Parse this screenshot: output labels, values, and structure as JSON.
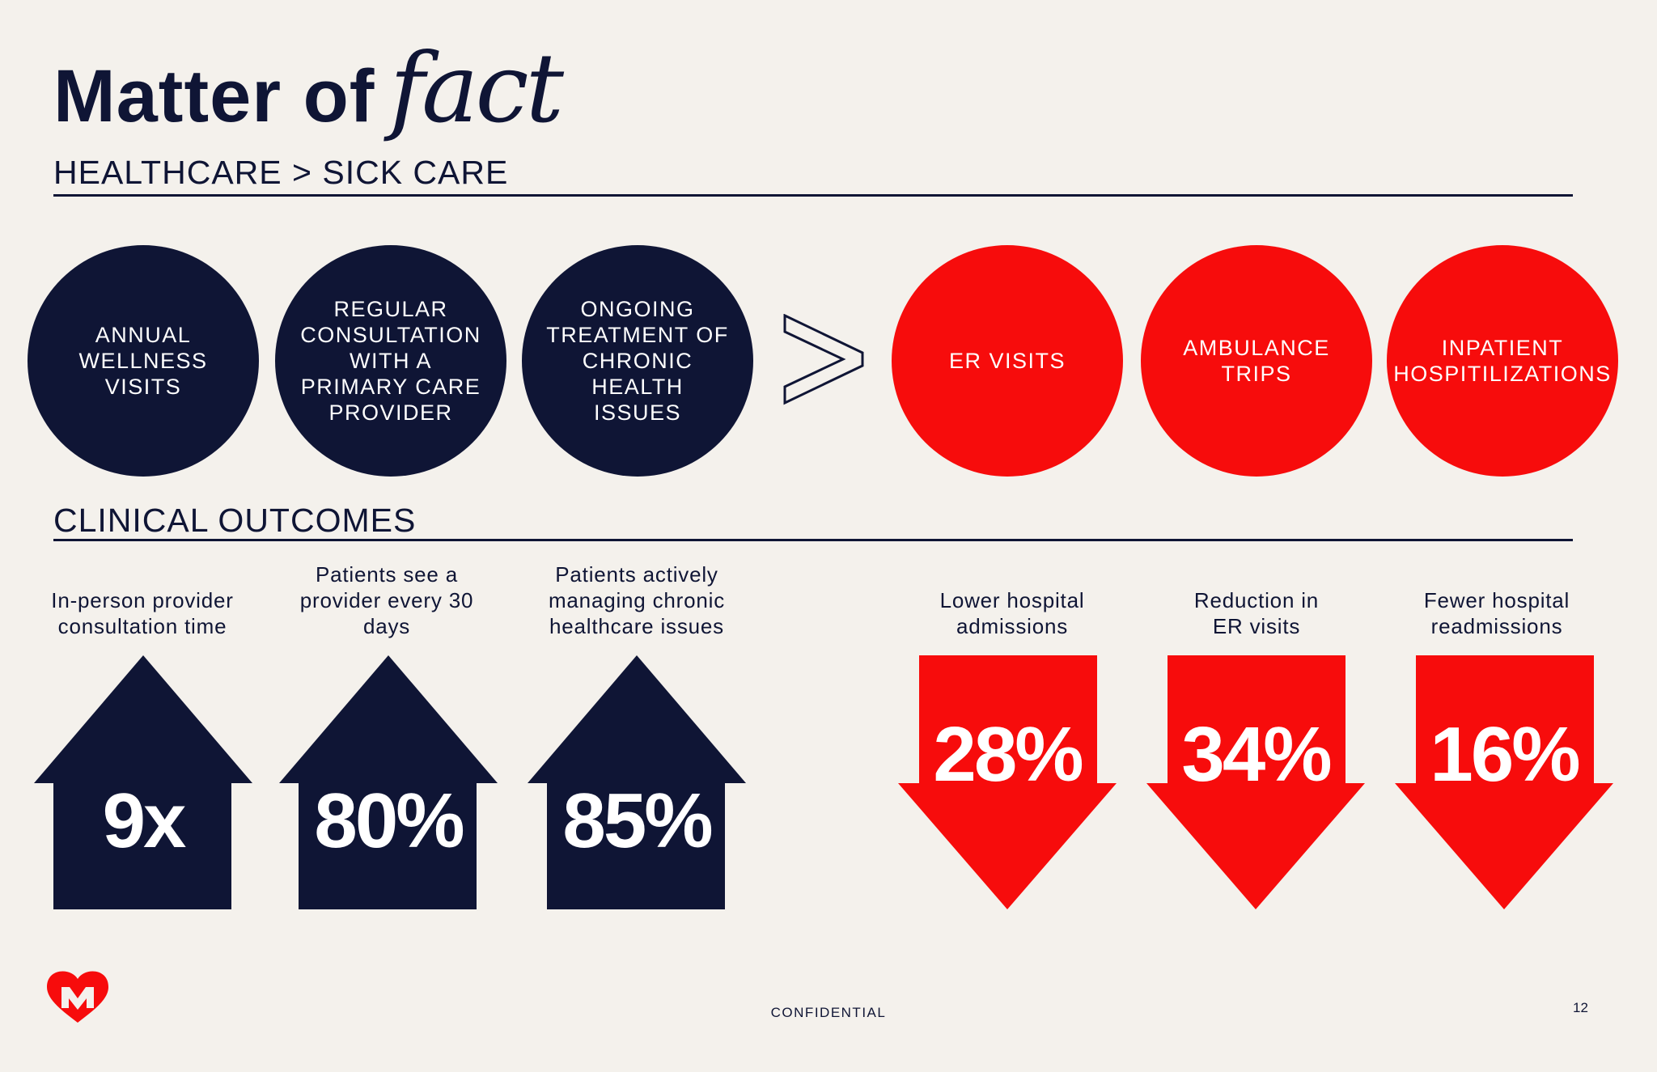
{
  "header": {
    "title_main": "Matter of",
    "title_script": "fact"
  },
  "sections": {
    "top": "HEALTHCARE > SICK CARE",
    "bottom": "CLINICAL OUTCOMES"
  },
  "healthcare_circles": [
    {
      "label": "ANNUAL WELLNESS VISITS"
    },
    {
      "label": "REGULAR CONSULTATION WITH A PRIMARY CARE PROVIDER"
    },
    {
      "label": "ONGOING TREATMENT OF CHRONIC HEALTH ISSUES"
    }
  ],
  "sickcare_circles": [
    {
      "label": "ER VISITS"
    },
    {
      "label": "AMBULANCE TRIPS"
    },
    {
      "label": "INPATIENT HOSPITILIZATIONS"
    }
  ],
  "increases": [
    {
      "caption": "In-person provider consultation time",
      "value": "9x"
    },
    {
      "caption": "Patients see a provider every 30 days",
      "value": "80%"
    },
    {
      "caption": "Patients actively managing chronic healthcare issues",
      "value": "85%"
    }
  ],
  "decreases": [
    {
      "caption": "Lower hospital admissions",
      "value": "28%"
    },
    {
      "caption": "Reduction in ER visits",
      "value": "34%"
    },
    {
      "caption": "Fewer hospital readmissions",
      "value": "16%"
    }
  ],
  "footer": {
    "confidential": "CONFIDENTIAL",
    "page_number": "12"
  },
  "colors": {
    "navy": "#0f1535",
    "red": "#f70c0c",
    "background": "#f4f1ec"
  },
  "icons": {
    "logo": "heart-m-logo-icon",
    "comparison": "greater-than-icon"
  }
}
